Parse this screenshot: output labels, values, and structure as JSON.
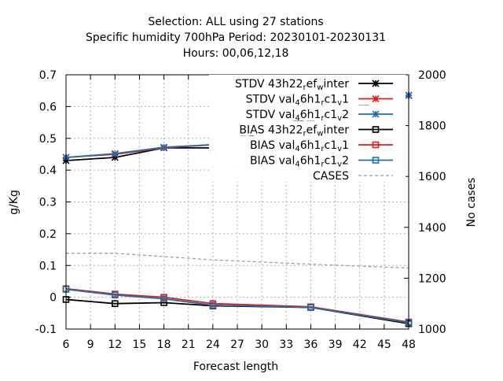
{
  "chart_data": {
    "type": "line",
    "title_lines": [
      "Selection: ALL using    27 stations",
      "Specific humidity 700hPa   Period: 20230101-20230131",
      "Hours:  00,06,12,18"
    ],
    "xlabel": "Forecast length",
    "ylabel": "g/Kg",
    "y2label": "No cases",
    "xlim": [
      6,
      48
    ],
    "ylim": [
      -0.1,
      0.7
    ],
    "y2lim": [
      1000,
      2000
    ],
    "xticks": [
      "6",
      "9",
      "12",
      "15",
      "18",
      "21",
      "24",
      "27",
      "30",
      "33",
      "36",
      "39",
      "42",
      "45",
      "48"
    ],
    "yticks": [
      "-0.1",
      "0",
      "0.1",
      "0.2",
      "0.3",
      "0.4",
      "0.5",
      "0.6",
      "0.7"
    ],
    "y2ticks": [
      "1000",
      "1200",
      "1400",
      "1600",
      "1800",
      "2000"
    ],
    "grid": true,
    "legend_position": "top-right",
    "x": [
      6,
      12,
      18,
      24,
      36,
      48
    ],
    "series": [
      {
        "name": "STDV 43h22_ref_winter",
        "label_parts": [
          [
            "STDV 43h22",
            ""
          ],
          [
            "r",
            "sub"
          ],
          [
            "ef",
            ""
          ],
          [
            "w",
            "sub"
          ],
          [
            "inter",
            ""
          ]
        ],
        "color": "#000000",
        "marker": "star",
        "axis": "y1",
        "values": [
          0.43,
          0.44,
          0.47,
          0.47,
          0.565,
          0.635
        ]
      },
      {
        "name": "STDV val_46h1_rc1_v1",
        "label_parts": [
          [
            "STDV val",
            ""
          ],
          [
            "4",
            "sub"
          ],
          [
            "6h1",
            ""
          ],
          [
            "r",
            "sub"
          ],
          [
            "c1",
            ""
          ],
          [
            "v",
            "sub"
          ],
          [
            "1",
            ""
          ]
        ],
        "color": "#e41a1c",
        "marker": "star",
        "axis": "y1",
        "values": [
          0.44,
          0.45,
          0.47,
          0.48,
          0.57,
          0.635
        ]
      },
      {
        "name": "STDV val_46h1_rc1_v2",
        "label_parts": [
          [
            "STDV val",
            ""
          ],
          [
            "4",
            "sub"
          ],
          [
            "6h1",
            ""
          ],
          [
            "r",
            "sub"
          ],
          [
            "c1",
            ""
          ],
          [
            "v",
            "sub"
          ],
          [
            "2",
            ""
          ]
        ],
        "color": "#1f6fa8",
        "marker": "star",
        "axis": "y1",
        "values": [
          0.44,
          0.452,
          0.472,
          0.48,
          0.568,
          0.635
        ]
      },
      {
        "name": "BIAS 43h22_ref_winter",
        "label_parts": [
          [
            "BIAS 43h22",
            ""
          ],
          [
            "r",
            "sub"
          ],
          [
            "ef",
            ""
          ],
          [
            "w",
            "sub"
          ],
          [
            "inter",
            ""
          ]
        ],
        "color": "#000000",
        "marker": "square",
        "axis": "y1",
        "values": [
          -0.007,
          -0.02,
          -0.017,
          -0.027,
          -0.032,
          -0.083
        ]
      },
      {
        "name": "BIAS val_46h1_rc1_v1",
        "label_parts": [
          [
            "BIAS val",
            ""
          ],
          [
            "4",
            "sub"
          ],
          [
            "6h1",
            ""
          ],
          [
            "r",
            "sub"
          ],
          [
            "c1",
            ""
          ],
          [
            "v",
            "sub"
          ],
          [
            "1",
            ""
          ]
        ],
        "color": "#e41a1c",
        "marker": "square",
        "axis": "y1",
        "values": [
          0.027,
          0.01,
          0.0,
          -0.02,
          -0.03,
          -0.078
        ]
      },
      {
        "name": "BIAS val_46h1_rc1_v2",
        "label_parts": [
          [
            "BIAS val",
            ""
          ],
          [
            "4",
            "sub"
          ],
          [
            "6h1",
            ""
          ],
          [
            "r",
            "sub"
          ],
          [
            "c1",
            ""
          ],
          [
            "v",
            "sub"
          ],
          [
            "2",
            ""
          ]
        ],
        "color": "#1f6fa8",
        "marker": "square",
        "axis": "y1",
        "values": [
          0.025,
          0.007,
          -0.005,
          -0.025,
          -0.032,
          -0.08
        ]
      },
      {
        "name": "CASES",
        "label_parts": [
          [
            "CASES",
            ""
          ]
        ],
        "color": "#999999",
        "marker": "none",
        "dashed": true,
        "axis": "y2",
        "values": [
          1298,
          1298,
          1285,
          1272,
          1255,
          1240
        ]
      }
    ]
  }
}
